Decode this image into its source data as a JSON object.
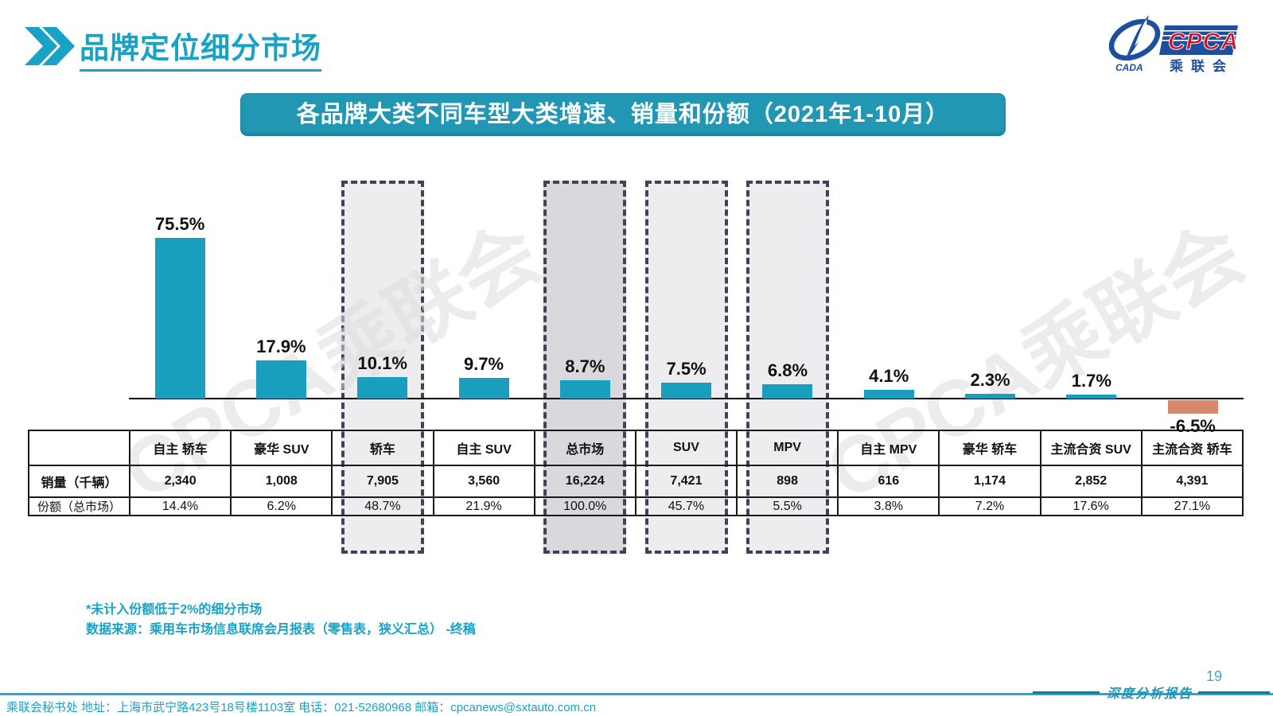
{
  "header": {
    "title": "品牌定位细分市场"
  },
  "logo": {
    "cpca": "CPCA",
    "cada": "CADA",
    "name_cn": "乘联会"
  },
  "banner": {
    "text": "各品牌大类不同车型大类增速、销量和份额（2021年1-10月）"
  },
  "chart_data": {
    "type": "bar",
    "title": "各品牌大类不同车型大类增速、销量和份额（2021年1-10月）",
    "categories": [
      "自主 轿车",
      "豪华 SUV",
      "轿车",
      "自主 SUV",
      "总市场",
      "SUV",
      "MPV",
      "自主 MPV",
      "豪华 轿车",
      "主流合资 SUV",
      "主流合资 轿车"
    ],
    "growth_pct": [
      75.5,
      17.9,
      10.1,
      9.7,
      8.7,
      7.5,
      6.8,
      4.1,
      2.3,
      1.7,
      -6.5
    ],
    "growth_labels": [
      "75.5%",
      "17.9%",
      "10.1%",
      "9.7%",
      "8.7%",
      "7.5%",
      "6.8%",
      "4.1%",
      "2.3%",
      "1.7%",
      "-6.5%"
    ],
    "sales_thousand": [
      "2,340",
      "1,008",
      "7,905",
      "3,560",
      "16,224",
      "7,421",
      "898",
      "616",
      "1,174",
      "2,852",
      "4,391"
    ],
    "share_total": [
      "14.4%",
      "6.2%",
      "48.7%",
      "21.9%",
      "100.0%",
      "45.7%",
      "5.5%",
      "3.8%",
      "7.2%",
      "17.6%",
      "27.1%"
    ],
    "row_labels": {
      "sales": "销量（千辆）",
      "share": "份额（总市场）"
    },
    "highlighted_columns": [
      {
        "index": 2,
        "shade": "light"
      },
      {
        "index": 4,
        "shade": "dark"
      },
      {
        "index": 5,
        "shade": "light"
      },
      {
        "index": 6,
        "shade": "light"
      }
    ],
    "colors": {
      "positive_bar": "#199FBD",
      "negative_bar": "#D8876A",
      "highlight_light": "#EDEDEF",
      "highlight_dark": "#D9D9DD",
      "dash_border": "#3E4456",
      "accent_teal": "#18A2C5"
    },
    "ylim": [
      -10,
      80
    ],
    "grid": false,
    "legend": false
  },
  "footnotes": {
    "line1": "*未计入份额低于2%的细分市场",
    "line2": "数据来源：乘用车市场信息联席会月报表（零售表，狭义汇总） -终稿"
  },
  "footer": {
    "contact": "乘联会秘书处  地址：上海市武宁路423号18号楼1103室  电话：021-52680968  邮箱：cpcanews@sxtauto.com.cn",
    "page_number": "19",
    "report_label": "深度分析报告"
  },
  "watermark": {
    "text": "CPCA乘联会"
  }
}
